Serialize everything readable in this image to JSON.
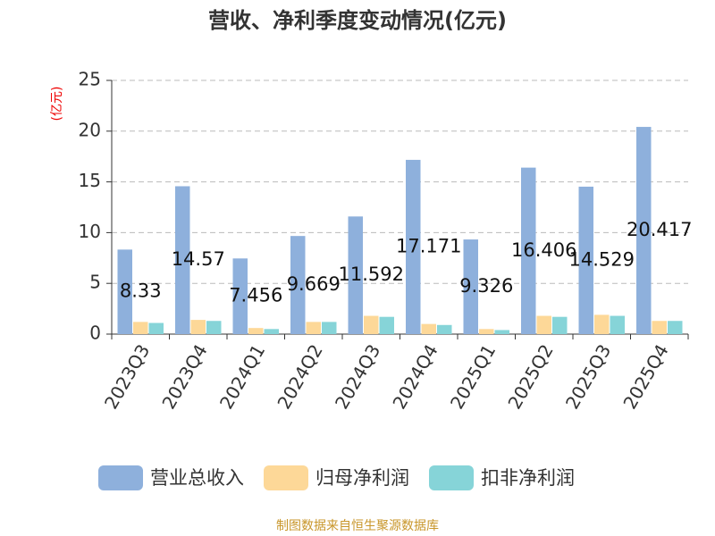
{
  "chart_data": {
    "type": "bar",
    "title": "营收、净利季度变动情况(亿元)",
    "y_label": "(亿元)",
    "source": "制图数据来自恒生聚源数据库",
    "categories": [
      "2023Q3",
      "2023Q4",
      "2024Q1",
      "2024Q2",
      "2024Q3",
      "2024Q4",
      "2025Q1",
      "2025Q2",
      "2025Q3",
      "2025Q4"
    ],
    "series": [
      {
        "name": "营业总收入",
        "color": "#8eb0dc",
        "values": [
          8.33,
          14.57,
          7.456,
          9.669,
          11.592,
          17.171,
          9.326,
          16.406,
          14.529,
          20.417
        ],
        "show_labels": true
      },
      {
        "name": "归母净利润",
        "color": "#fdd898",
        "values": [
          1.2,
          1.4,
          0.6,
          1.2,
          1.8,
          1.0,
          0.5,
          1.8,
          1.9,
          1.3
        ]
      },
      {
        "name": "扣非净利润",
        "color": "#86d4d8",
        "values": [
          1.1,
          1.3,
          0.5,
          1.2,
          1.7,
          0.9,
          0.4,
          1.7,
          1.8,
          1.3
        ]
      }
    ],
    "ylim": [
      0,
      25
    ],
    "yticks": [
      0,
      5,
      10,
      15,
      20,
      25
    ],
    "grid": true,
    "legend": "bottom"
  }
}
